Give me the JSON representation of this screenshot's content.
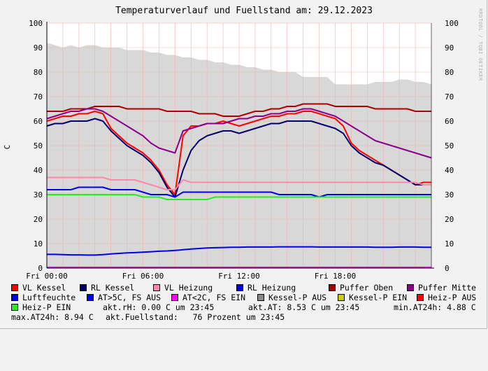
{
  "title": "Temperaturverlauf und Fuellstand am: 29.12.2023",
  "watermark": "RRDTOOL / TOBI OETIKER",
  "chart_data": {
    "type": "line",
    "ylabel": "C",
    "ylim": [
      0,
      100
    ],
    "yticks": [
      0,
      10,
      20,
      30,
      40,
      50,
      60,
      70,
      80,
      90,
      100
    ],
    "xlim": [
      0,
      24
    ],
    "xticks": [
      0,
      6,
      12,
      18
    ],
    "xtick_labels": [
      "Fri 00:00",
      "Fri 06:00",
      "Fri 12:00",
      "Fri 18:00"
    ],
    "grid": true,
    "fill_area": {
      "name": "Fuellstand",
      "x": [
        0,
        0.5,
        1,
        1.5,
        2,
        2.5,
        3,
        3.5,
        4,
        4.5,
        5,
        5.5,
        6,
        6.5,
        7,
        7.5,
        8,
        8.5,
        9,
        9.5,
        10,
        10.5,
        11,
        11.5,
        12,
        12.5,
        13,
        13.5,
        14,
        14.5,
        15,
        15.5,
        16,
        16.5,
        17,
        17.5,
        18,
        18.5,
        19,
        19.5,
        20,
        20.5,
        21,
        21.5,
        22,
        22.5,
        23,
        23.5,
        24
      ],
      "values": [
        92,
        91,
        90,
        91,
        90,
        91,
        91,
        90,
        90,
        90,
        89,
        89,
        89,
        88,
        88,
        87,
        87,
        86,
        86,
        85,
        85,
        84,
        84,
        83,
        83,
        82,
        82,
        81,
        81,
        80,
        80,
        80,
        78,
        78,
        78,
        78,
        75,
        75,
        75,
        75,
        75,
        76,
        76,
        76,
        77,
        77,
        76,
        76,
        75
      ]
    },
    "x": [
      0,
      0.5,
      1,
      1.5,
      2,
      2.5,
      3,
      3.5,
      4,
      4.5,
      5,
      5.5,
      6,
      6.5,
      7,
      7.5,
      8,
      8.5,
      9,
      9.5,
      10,
      10.5,
      11,
      11.5,
      12,
      12.5,
      13,
      13.5,
      14,
      14.5,
      15,
      15.5,
      16,
      16.5,
      17,
      17.5,
      18,
      18.5,
      19,
      19.5,
      20,
      20.5,
      21,
      21.5,
      22,
      22.5,
      23,
      23.5,
      24
    ],
    "series": [
      {
        "name": "VL Kessel",
        "color": "#ff0000",
        "values": [
          60,
          61,
          62,
          62,
          63,
          63,
          64,
          63,
          57,
          54,
          51,
          49,
          47,
          44,
          40,
          34,
          30,
          54,
          58,
          58,
          59,
          59,
          60,
          59,
          58,
          59,
          60,
          61,
          62,
          62,
          63,
          63,
          64,
          64,
          63,
          62,
          61,
          58,
          51,
          48,
          46,
          44,
          42,
          40,
          38,
          36,
          34,
          35,
          35
        ]
      },
      {
        "name": "RL Kessel",
        "color": "#00006b",
        "values": [
          58,
          59,
          59,
          60,
          60,
          60,
          61,
          60,
          56,
          53,
          50,
          48,
          46,
          43,
          39,
          33,
          29,
          40,
          48,
          52,
          54,
          55,
          56,
          56,
          55,
          56,
          57,
          58,
          59,
          59,
          60,
          60,
          60,
          60,
          59,
          58,
          57,
          55,
          50,
          47,
          45,
          43,
          42,
          40,
          38,
          36,
          34,
          34,
          34
        ]
      },
      {
        "name": "VL Heizung",
        "color": "#ff88aa",
        "values": [
          37,
          37,
          37,
          37,
          37,
          37,
          37,
          37,
          36,
          36,
          36,
          36,
          35,
          34,
          33,
          32,
          32,
          36,
          35,
          35,
          35,
          35,
          35,
          35,
          35,
          35,
          35,
          35,
          35,
          35,
          35,
          35,
          35,
          35,
          35,
          35,
          35,
          35,
          35,
          35,
          35,
          35,
          35,
          35,
          35,
          35,
          35,
          34,
          34
        ]
      },
      {
        "name": "RL Heizung",
        "color": "#0000ee",
        "values": [
          32,
          32,
          32,
          32,
          33,
          33,
          33,
          33,
          32,
          32,
          32,
          32,
          31,
          30,
          30,
          30,
          29,
          31,
          31,
          31,
          31,
          31,
          31,
          31,
          31,
          31,
          31,
          31,
          31,
          30,
          30,
          30,
          30,
          30,
          29,
          30,
          30,
          30,
          30,
          30,
          30,
          30,
          30,
          30,
          30,
          30,
          30,
          30,
          30
        ]
      },
      {
        "name": "Puffer Oben",
        "color": "#aa0000",
        "values": [
          64,
          64,
          64,
          65,
          65,
          65,
          66,
          66,
          66,
          66,
          65,
          65,
          65,
          65,
          65,
          64,
          64,
          64,
          64,
          63,
          63,
          63,
          62,
          62,
          62,
          63,
          64,
          64,
          65,
          65,
          66,
          66,
          67,
          67,
          67,
          67,
          66,
          66,
          66,
          66,
          66,
          65,
          65,
          65,
          65,
          65,
          64,
          64,
          64
        ]
      },
      {
        "name": "Puffer Mitte",
        "color": "#8a008a",
        "values": [
          61,
          62,
          63,
          64,
          64,
          65,
          65,
          64,
          62,
          60,
          58,
          56,
          54,
          51,
          49,
          48,
          47,
          56,
          57,
          58,
          59,
          59,
          59,
          60,
          61,
          61,
          62,
          62,
          63,
          63,
          64,
          64,
          65,
          65,
          64,
          63,
          62,
          60,
          58,
          56,
          54,
          52,
          51,
          50,
          49,
          48,
          47,
          46,
          45
        ]
      },
      {
        "name": "Heiz-P EIN",
        "color": "#22ee22",
        "values": [
          30,
          30,
          30,
          30,
          30,
          30,
          30,
          30,
          30,
          30,
          30,
          30,
          29,
          29,
          29,
          28,
          28,
          28,
          28,
          28,
          28,
          29,
          29,
          29,
          29,
          29,
          29,
          29,
          29,
          29,
          29,
          29,
          29,
          29,
          29,
          29,
          29,
          29,
          29,
          29,
          29,
          29,
          29,
          29,
          29,
          29,
          29,
          29,
          29
        ]
      },
      {
        "name": "Luftfeuchte",
        "color": "#0000ee",
        "values": [
          5.6,
          5.6,
          5.5,
          5.4,
          5.4,
          5.3,
          5.3,
          5.5,
          5.8,
          6.0,
          6.2,
          6.3,
          6.5,
          6.7,
          6.9,
          7.0,
          7.2,
          7.5,
          7.8,
          8.0,
          8.2,
          8.3,
          8.4,
          8.5,
          8.5,
          8.6,
          8.6,
          8.6,
          8.6,
          8.7,
          8.7,
          8.7,
          8.7,
          8.7,
          8.6,
          8.6,
          8.6,
          8.6,
          8.6,
          8.6,
          8.6,
          8.5,
          8.5,
          8.5,
          8.6,
          8.6,
          8.6,
          8.5,
          8.5
        ]
      },
      {
        "name": "AT<2C, FS EIN",
        "color": "#ff00ff",
        "values": [
          0.3,
          0.3,
          0.3,
          0.3,
          0.3,
          0.3,
          0.3,
          0.3,
          0.3,
          0.3,
          0.3,
          0.3,
          0.3,
          0.3,
          0.3,
          0.3,
          0.3,
          0.3,
          0.3,
          0.3,
          0.3,
          0.3,
          0.3,
          0.3,
          0.3,
          0.3,
          0.3,
          0.3,
          0.3,
          0.3,
          0.3,
          0.3,
          0.3,
          0.3,
          0.3,
          0.3,
          0.3,
          0.3,
          0.3,
          0.3,
          0.3,
          0.3,
          0.3,
          0.3,
          0.3,
          0.3,
          0.3,
          0.3,
          0.3
        ]
      }
    ]
  },
  "legend": {
    "row1": [
      {
        "label": "VL Kessel",
        "color": "#ff0000"
      },
      {
        "label": "RL Kessel",
        "color": "#00006b"
      },
      {
        "label": "VL Heizung",
        "color": "#ff88aa"
      },
      {
        "label": "RL Heizung",
        "color": "#0000ee"
      },
      {
        "label": "Puffer Oben",
        "color": "#aa0000"
      },
      {
        "label": "Puffer Mitte",
        "color": "#8a008a"
      }
    ],
    "row2": [
      {
        "label": "Luftfeuchte",
        "color": "#0000ee"
      },
      {
        "label": "AT>5C, FS AUS",
        "color": "#0000ee"
      },
      {
        "label": "AT<2C, FS EIN",
        "color": "#ff00ff"
      },
      {
        "label": "Kessel-P AUS",
        "color": "#888888"
      },
      {
        "label": "Kessel-P EIN",
        "color": "#cccc00"
      },
      {
        "label": "Heiz-P AUS",
        "color": "#ff0000"
      }
    ],
    "row3_item": {
      "label": "Heiz-P EIN",
      "color": "#22ee22"
    },
    "row3_rh": "akt.rH: 0.00 C um 23:45",
    "row3_at": "akt.AT: 8.53 C um 23:45",
    "row3_min": "min.AT24h: 4.88 C",
    "row4_max": "max.AT24h: 8.94 C",
    "row4_fuell": "akt.Fuellstand:   76 Prozent um 23:45"
  }
}
